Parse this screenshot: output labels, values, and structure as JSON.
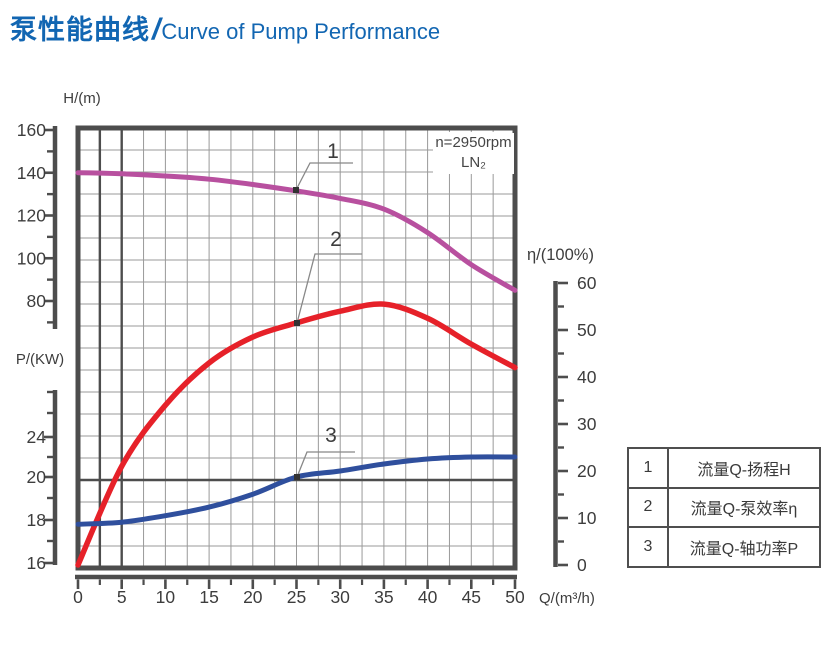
{
  "header": {
    "title_zh": "泵性能曲线",
    "slash": "/",
    "title_en": "Curve of Pump Performance"
  },
  "annotation": {
    "line1": "n=2950rpm",
    "line2": "LN₂"
  },
  "axes": {
    "h": {
      "title": "H/(m)",
      "ticks": [
        160,
        140,
        120,
        100,
        80
      ]
    },
    "p": {
      "title": "P/(KW)",
      "ticks": [
        24,
        20,
        18,
        16
      ]
    },
    "eta": {
      "title": "η/(100%)",
      "ticks": [
        60,
        50,
        40,
        30,
        20,
        10,
        0
      ]
    },
    "q": {
      "title": "Q/(m³/h)",
      "ticks": [
        0,
        5,
        10,
        15,
        20,
        25,
        30,
        35,
        40,
        45,
        50
      ]
    }
  },
  "callouts": [
    {
      "label": "1"
    },
    {
      "label": "2"
    },
    {
      "label": "3"
    }
  ],
  "legend": {
    "rows": [
      {
        "num": "1",
        "label": "流量Q-扬程H"
      },
      {
        "num": "2",
        "label": "流量Q-泵效率η"
      },
      {
        "num": "3",
        "label": "流量Q-轴功率P"
      }
    ]
  },
  "colors": {
    "title_blue": "#1266b2",
    "frame": "#4d4d4d",
    "grid": "#999999",
    "marker_line": "#4d4d4d",
    "text": "#3d3d3d",
    "leader": "#888888",
    "curve_h": "#b8509f",
    "curve_eta": "#e62129",
    "curve_p": "#2f4f9d"
  },
  "chart_data": {
    "type": "line",
    "title": "泵性能曲线 / Curve of Pump Performance",
    "xlabel": "Q/(m³/h)",
    "x_range": [
      0,
      50
    ],
    "grid": true,
    "annotation": "n=2950rpm LN₂",
    "axis_ranges": {
      "H": [
        80,
        160
      ],
      "eta_percent": [
        0,
        60
      ],
      "P_KW": [
        16,
        24
      ]
    },
    "reference_lines": {
      "vertical_q": [
        2.5,
        5
      ],
      "horizontal_p": 20
    },
    "series": [
      {
        "name": "流量Q-扬程H",
        "curve_no": "1",
        "axis": "H/(m)",
        "color": "#b8509f",
        "x": [
          0,
          5,
          10,
          15,
          20,
          25,
          30,
          35,
          40,
          45,
          50
        ],
        "y": [
          140,
          139.5,
          138.5,
          137,
          134.5,
          131.5,
          128,
          123,
          112,
          97,
          85
        ]
      },
      {
        "name": "流量Q-泵效率η",
        "curve_no": "2",
        "axis": "η/(100%)",
        "color": "#e62129",
        "x": [
          0,
          5,
          10,
          15,
          20,
          25,
          30,
          35,
          40,
          45,
          50
        ],
        "y": [
          0,
          21,
          34,
          43,
          48.5,
          51.5,
          54,
          55.5,
          52.5,
          47,
          42
        ]
      },
      {
        "name": "流量Q-轴功率P",
        "curve_no": "3",
        "axis": "P/(KW)",
        "color": "#2f4f9d",
        "x": [
          0,
          5,
          10,
          15,
          20,
          25,
          30,
          35,
          40,
          45,
          50
        ],
        "y": [
          17.8,
          17.9,
          18.2,
          18.6,
          19.2,
          20,
          20.6,
          21.3,
          21.8,
          22,
          22
        ]
      }
    ]
  }
}
